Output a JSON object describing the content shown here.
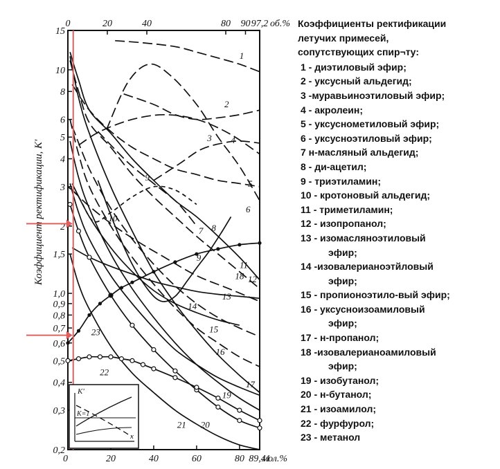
{
  "chart_data": {
    "type": "line",
    "title": "Коэффициенты ректификации летучих примесей, сопутствующих спир¬тy:",
    "ylabel": "Коэффициент ректификации, К'",
    "x_bottom_unit": "мол.%",
    "x_top_unit": "об.%",
    "y_scale": "log",
    "ylim": [
      0.2,
      15
    ],
    "xlim": [
      0,
      89.41
    ],
    "y_ticks": [
      "15",
      "10",
      "8",
      "6",
      "5",
      "4",
      "3",
      "2",
      "1,5",
      "1,0",
      "0,9",
      "0,8",
      "0,7",
      "0,6",
      "0,5",
      "0,4",
      "0,3",
      "0,2"
    ],
    "y_tick_values": [
      15,
      10,
      8,
      6,
      5,
      4,
      3,
      2,
      1.5,
      1.0,
      0.9,
      0.8,
      0.7,
      0.6,
      0.5,
      0.4,
      0.3,
      0.2
    ],
    "x_bottom_ticks": [
      "0",
      "20",
      "40",
      "60",
      "80",
      "89,41"
    ],
    "x_bottom_tick_values": [
      0,
      20,
      40,
      60,
      80,
      89.41
    ],
    "x_top_ticks": [
      "0",
      "20",
      "40",
      "80",
      "90",
      "97,2"
    ],
    "x_top_tick_values": [
      0,
      20,
      40,
      80,
      90,
      97.2
    ],
    "grid": false,
    "markers": {
      "k_1_6": 2.05,
      "k_0_65": 0.65,
      "x_marker": 2.5,
      "marker_color": "#e06060"
    },
    "inset": {
      "ylabel": "K'",
      "hline_label": "K=1",
      "xlabel": "x"
    },
    "series": [
      {
        "name": "1",
        "dash": "long",
        "x": [
          22,
          35,
          50,
          60,
          70,
          80,
          89.41
        ],
        "y": [
          13.5,
          13.2,
          12.7,
          12.0,
          11.3,
          10.6,
          9.8
        ]
      },
      {
        "name": "2",
        "dash": "long",
        "x": [
          26,
          40,
          50,
          60,
          70,
          80,
          89.41
        ],
        "y": [
          7.8,
          7.0,
          6.3,
          6.0,
          6.1,
          6.3,
          6.6
        ]
      },
      {
        "name": "3",
        "dash": "long",
        "x": [
          5,
          15,
          30,
          45,
          60,
          75,
          89.41
        ],
        "y": [
          4.6,
          5.3,
          6.0,
          6.3,
          6.0,
          5.2,
          4.2
        ]
      },
      {
        "name": "4",
        "dash": "long",
        "x": [
          40,
          52,
          62,
          72,
          80,
          89.41
        ],
        "y": [
          3.2,
          3.8,
          4.4,
          4.7,
          4.8,
          4.7
        ]
      },
      {
        "name": "5",
        "dash": "long",
        "x": [
          18,
          28,
          38,
          48,
          60,
          70,
          80,
          89.41
        ],
        "y": [
          5.4,
          8.8,
          10.6,
          9.4,
          7.0,
          5.0,
          3.7,
          2.6
        ]
      },
      {
        "name": "6",
        "dash": "long",
        "x": [
          2,
          10,
          20,
          30,
          40,
          50,
          60,
          70,
          80,
          89.41
        ],
        "y": [
          8.6,
          6.6,
          5.3,
          4.5,
          4.0,
          3.6,
          3.4,
          3.2,
          3.1,
          3.0
        ]
      },
      {
        "name": "7",
        "dash": "short",
        "x": [
          0,
          5,
          12,
          20,
          30,
          40,
          50,
          60
        ],
        "y": [
          3.0,
          2.7,
          2.1,
          2.3,
          2.7,
          3.0,
          2.9,
          2.5
        ]
      },
      {
        "name": "8",
        "dash": "long",
        "x": [
          14,
          22,
          30,
          40,
          50,
          55,
          60
        ],
        "y": [
          5.3,
          4.4,
          3.7,
          3.1,
          2.6,
          2.3,
          2.0
        ]
      },
      {
        "name": "9",
        "dash": "none",
        "x": [
          14,
          22,
          30,
          38,
          44,
          50,
          56,
          60,
          66,
          72,
          76
        ],
        "y": [
          3.2,
          2.0,
          1.35,
          1.02,
          0.92,
          0.97,
          1.15,
          1.3,
          1.55,
          1.9,
          2.2
        ]
      },
      {
        "name": "10",
        "dash": "long",
        "x": [
          2,
          8,
          16,
          25,
          35,
          45,
          60,
          75,
          89.41
        ],
        "y": [
          2.9,
          2.55,
          2.2,
          1.9,
          1.65,
          1.45,
          1.2,
          1.05,
          0.92
        ]
      },
      {
        "name": "11",
        "dash": "none",
        "x": [
          1,
          5,
          10,
          20,
          30,
          40,
          50,
          60,
          70,
          80,
          89.41
        ],
        "y": [
          12.0,
          9.0,
          6.6,
          5.2,
          4.0,
          3.2,
          2.6,
          2.2,
          1.8,
          1.45,
          1.15
        ]
      },
      {
        "name": "12",
        "dash": "long",
        "x": [
          1,
          5,
          10,
          20,
          30,
          40,
          50,
          60,
          70,
          80,
          89.41
        ],
        "y": [
          11.0,
          8.0,
          5.8,
          4.5,
          3.4,
          2.7,
          2.2,
          1.8,
          1.5,
          1.25,
          1.05
        ]
      },
      {
        "name": "13",
        "dash": "none",
        "x": [
          2,
          10,
          20,
          30,
          40,
          50,
          60,
          70,
          80,
          89.41
        ],
        "y": [
          1.6,
          1.45,
          1.32,
          1.22,
          1.13,
          1.07,
          1.02,
          0.99,
          0.97,
          0.95
        ]
      },
      {
        "name": "14",
        "dash": "none",
        "x": [
          2,
          10,
          20,
          30,
          40,
          50,
          60,
          70,
          80
        ],
        "y": [
          3.1,
          2.2,
          1.6,
          1.25,
          1.03,
          0.9,
          0.82,
          0.76,
          0.72
        ]
      },
      {
        "name": "15",
        "dash": "long",
        "x": [
          2,
          10,
          20,
          30,
          40,
          50,
          60,
          70,
          80,
          89.41
        ],
        "y": [
          5.6,
          3.6,
          2.4,
          1.75,
          1.35,
          1.08,
          0.9,
          0.78,
          0.7,
          0.64
        ]
      },
      {
        "name": "16",
        "dash": "long",
        "x": [
          1,
          5,
          10,
          20,
          30,
          40,
          50,
          60,
          70,
          80,
          89.41
        ],
        "y": [
          6.0,
          4.2,
          3.0,
          2.0,
          1.45,
          1.1,
          0.86,
          0.7,
          0.6,
          0.52,
          0.47
        ]
      },
      {
        "name": "17",
        "dash": "none",
        "x": [
          1,
          5,
          10,
          20,
          30,
          40,
          50,
          60,
          70,
          80,
          89.41
        ],
        "y": [
          3.1,
          2.3,
          1.75,
          1.2,
          0.9,
          0.7,
          0.56,
          0.48,
          0.42,
          0.38,
          0.35
        ]
      },
      {
        "name": "18",
        "dash": "none",
        "x": [
          1,
          5,
          10,
          20,
          30,
          40,
          50,
          60,
          70,
          80,
          89.41
        ],
        "y": [
          11.5,
          7.5,
          5.2,
          3.0,
          1.9,
          1.25,
          0.9,
          0.68,
          0.53,
          0.43,
          0.36
        ]
      },
      {
        "name": "19",
        "dash": "none",
        "x": [
          1,
          5,
          10,
          20,
          30,
          40,
          50,
          60,
          70,
          80,
          89.41
        ],
        "y": [
          4.8,
          3.3,
          2.4,
          1.5,
          1.05,
          0.78,
          0.6,
          0.48,
          0.4,
          0.34,
          0.3
        ]
      },
      {
        "name": "20",
        "dash": "circles",
        "x": [
          1,
          5,
          10,
          20,
          30,
          40,
          50,
          60,
          70,
          80,
          89.41
        ],
        "y": [
          2.5,
          1.9,
          1.45,
          0.98,
          0.72,
          0.56,
          0.45,
          0.37,
          0.31,
          0.27,
          0.25
        ]
      },
      {
        "name": "21",
        "dash": "none",
        "x": [
          1,
          5,
          10,
          20,
          30,
          40,
          50,
          60,
          70,
          80,
          89.41
        ],
        "y": [
          1.5,
          1.1,
          0.85,
          0.58,
          0.44,
          0.36,
          0.3,
          0.26,
          0.23,
          0.21,
          0.2
        ]
      },
      {
        "name": "22",
        "dash": "circles",
        "x": [
          0,
          5,
          10,
          15,
          20,
          25,
          30,
          35,
          40,
          50,
          60,
          70,
          80,
          89.41
        ],
        "y": [
          0.5,
          0.51,
          0.52,
          0.52,
          0.52,
          0.51,
          0.5,
          0.48,
          0.46,
          0.42,
          0.38,
          0.34,
          0.3,
          0.27
        ]
      },
      {
        "name": "23",
        "dash": "dots",
        "x": [
          0,
          5,
          10,
          15,
          20,
          25,
          30,
          40,
          50,
          60,
          70,
          80,
          89.41
        ],
        "y": [
          0.6,
          0.68,
          0.8,
          0.9,
          0.98,
          1.06,
          1.12,
          1.25,
          1.38,
          1.5,
          1.58,
          1.65,
          1.68
        ]
      }
    ],
    "curve_labels": [
      {
        "name": "1",
        "x": 81,
        "y": 11.2
      },
      {
        "name": "2",
        "x": 74,
        "y": 6.8
      },
      {
        "name": "3",
        "x": 66,
        "y": 4.8
      },
      {
        "name": "4",
        "x": 77,
        "y": 4.7
      },
      {
        "name": "5",
        "x": 85,
        "y": 3.0
      },
      {
        "name": "6",
        "x": 84,
        "y": 2.3
      },
      {
        "name": "7",
        "x": 62,
        "y": 1.85
      },
      {
        "name": "8",
        "x": 68,
        "y": 1.9
      },
      {
        "name": "9",
        "x": 37,
        "y": 3.2
      },
      {
        "name": "10",
        "x": 21,
        "y": 2.1
      },
      {
        "name": "11",
        "x": 82,
        "y": 1.3
      },
      {
        "name": "12",
        "x": 86,
        "y": 1.12
      },
      {
        "name": "13",
        "x": 74,
        "y": 0.94
      },
      {
        "name": "14",
        "x": 58,
        "y": 0.85
      },
      {
        "name": "15",
        "x": 68,
        "y": 0.67
      },
      {
        "name": "16",
        "x": 71,
        "y": 0.53
      },
      {
        "name": "17",
        "x": 85,
        "y": 0.38
      },
      {
        "name": "18",
        "x": 80,
        "y": 1.16
      },
      {
        "name": "19",
        "x": 74,
        "y": 0.34
      },
      {
        "name": "20",
        "x": 64,
        "y": 0.25
      },
      {
        "name": "21",
        "x": 53,
        "y": 0.25
      },
      {
        "name": "22",
        "x": 17,
        "y": 0.43
      },
      {
        "name": "23",
        "x": 13,
        "y": 0.65
      },
      {
        "name": "9",
        "x": 61,
        "y": 1.4
      }
    ]
  },
  "legend": {
    "title_lines": [
      "Коэффициенты ректификации",
      "летучих примесей,",
      "сопутствующих спир¬тy:"
    ],
    "items": [
      [
        "1 - диэтиловый эфир;"
      ],
      [
        " 2 - уксусный альдегид;"
      ],
      [
        "3 -муравьиноэтиловый эфир;"
      ],
      [
        "4 - акролеин;"
      ],
      [
        "5 - уксуснометиловый эфир;"
      ],
      [
        "6 - уксусноэтиловый эфир;"
      ],
      [
        "7 н-масляный альдегид;"
      ],
      [
        "8 - ди-ацетил;"
      ],
      [
        "9 - триэтиламин;"
      ],
      [
        "10 - кротоновый альдегид;"
      ],
      [
        "11 - триметиламин;"
      ],
      [
        "12 - изопропанол;"
      ],
      [
        "13 - изомасляноэтиловый",
        "эфир;"
      ],
      [
        "14 -изовалерианоэтйловый",
        "эфир;"
      ],
      [
        "15 - пропионоэтило-вый эфир;"
      ],
      [
        "16 - уксусноизоамиловый",
        "эфир;"
      ],
      [
        "17 - н-пропанол;"
      ],
      [
        "18 -изовалерианоамиловый",
        "эфир;"
      ],
      [
        "19 - изобутанол;"
      ],
      [
        "20 - н-бутанол;"
      ],
      [
        "21 - изоамилол;"
      ],
      [
        "22 - фурфурол;"
      ],
      [
        "23 - метанол"
      ]
    ]
  }
}
